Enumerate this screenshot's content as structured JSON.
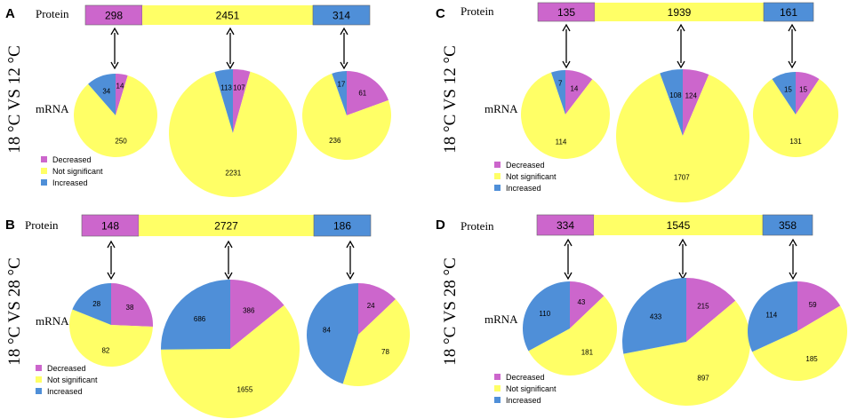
{
  "colors": {
    "decreased": "#CC66CC",
    "not_significant": "#FFFF66",
    "increased": "#4F8FD8",
    "bar_border": "#666666",
    "arrow": "#000000"
  },
  "labels": {
    "protein": "Protein",
    "mrna": "mRNA",
    "legend": [
      "Decreased",
      "Not significant",
      "Increased"
    ]
  },
  "chart_data": [
    {
      "type": "pie",
      "panel": "A",
      "comparison": "18 °C VS 12 °C",
      "protein_bar": [
        298,
        2451,
        314
      ],
      "mrna_pies": [
        {
          "protein_category": "Decreased",
          "decreased": 14,
          "not_significant": 250,
          "increased": 34
        },
        {
          "protein_category": "Not significant",
          "decreased": 107,
          "not_significant": 2231,
          "increased": 113
        },
        {
          "protein_category": "Increased",
          "decreased": 61,
          "not_significant": 236,
          "increased": 17
        }
      ]
    },
    {
      "type": "pie",
      "panel": "B",
      "comparison": "18 °C VS 28 °C",
      "protein_bar": [
        148,
        2727,
        186
      ],
      "mrna_pies": [
        {
          "protein_category": "Decreased",
          "decreased": 38,
          "not_significant": 82,
          "increased": 28
        },
        {
          "protein_category": "Not significant",
          "decreased": 386,
          "not_significant": 1655,
          "increased": 686
        },
        {
          "protein_category": "Increased",
          "decreased": 24,
          "not_significant": 78,
          "increased": 84
        }
      ]
    },
    {
      "type": "pie",
      "panel": "C",
      "comparison": "18 °C VS 12 °C",
      "protein_bar": [
        135,
        1939,
        161
      ],
      "mrna_pies": [
        {
          "protein_category": "Decreased",
          "decreased": 14,
          "not_significant": 114,
          "increased": 7
        },
        {
          "protein_category": "Not significant",
          "decreased": 124,
          "not_significant": 1707,
          "increased": 108
        },
        {
          "protein_category": "Increased",
          "decreased": 15,
          "not_significant": 131,
          "increased": 15
        }
      ]
    },
    {
      "type": "pie",
      "panel": "D",
      "comparison": "18 °C VS 28 °C",
      "protein_bar": [
        334,
        1545,
        358
      ],
      "mrna_pies": [
        {
          "protein_category": "Decreased",
          "decreased": 43,
          "not_significant": 181,
          "increased": 110
        },
        {
          "protein_category": "Not significant",
          "decreased": 215,
          "not_significant": 897,
          "increased": 433
        },
        {
          "protein_category": "Increased",
          "decreased": 59,
          "not_significant": 185,
          "increased": 114
        }
      ]
    }
  ]
}
